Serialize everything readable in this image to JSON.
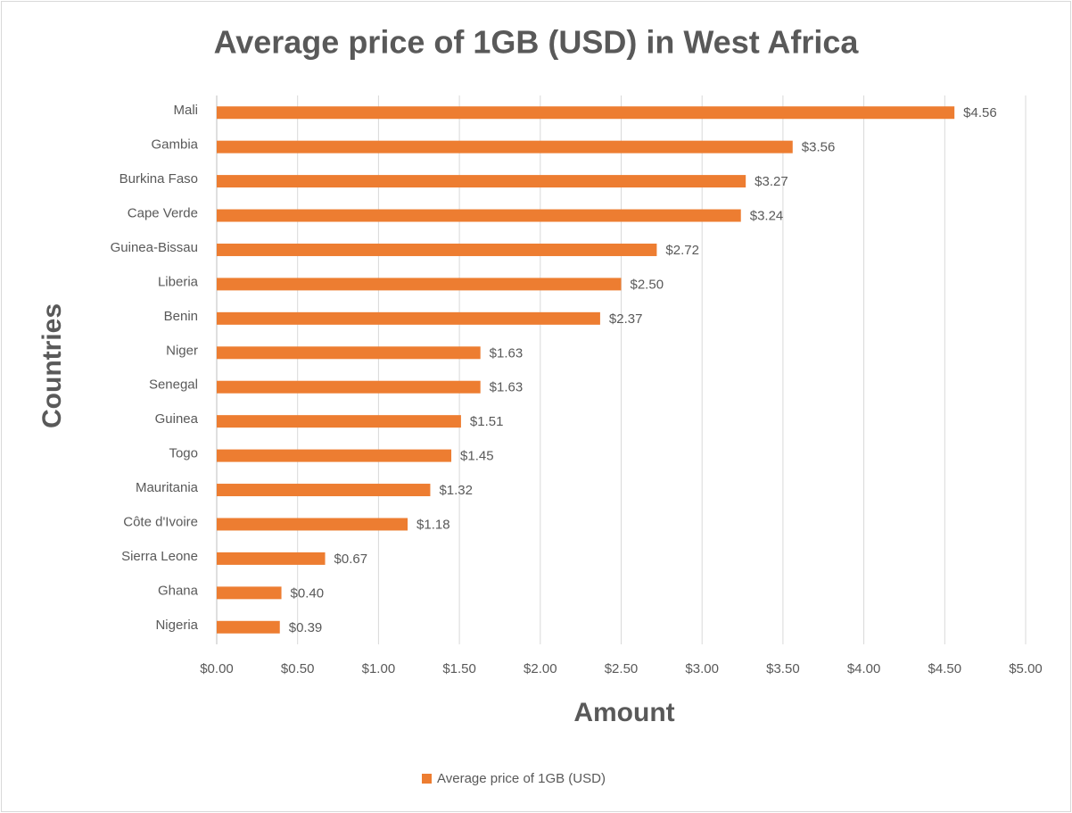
{
  "chart_data": {
    "type": "bar",
    "orientation": "horizontal",
    "title": "Average price of 1GB (USD) in West Africa",
    "x_label": "Amount",
    "y_label": "Countries",
    "categories": [
      "Mali",
      "Gambia",
      "Burkina Faso",
      "Cape Verde",
      "Guinea-Bissau",
      "Liberia",
      "Benin",
      "Niger",
      "Senegal",
      "Guinea",
      "Togo",
      "Mauritania",
      "Côte d'Ivoire",
      "Sierra Leone",
      "Ghana",
      "Nigeria"
    ],
    "series": [
      {
        "name": "Average price of 1GB (USD)",
        "color": "#ed7d31",
        "values": [
          4.56,
          3.56,
          3.27,
          3.24,
          2.72,
          2.5,
          2.37,
          1.63,
          1.63,
          1.51,
          1.45,
          1.32,
          1.18,
          0.67,
          0.4,
          0.39
        ],
        "value_labels": [
          "$4.56",
          "$3.56",
          "$3.27",
          "$3.24",
          "$2.72",
          "$2.50",
          "$2.37",
          "$1.63",
          "$1.63",
          "$1.51",
          "$1.45",
          "$1.32",
          "$1.18",
          "$0.67",
          "$0.40",
          "$0.39"
        ]
      }
    ],
    "xlim": [
      0,
      5
    ],
    "xticks": [
      {
        "value": 0,
        "label": "$0.00"
      },
      {
        "value": 0.5,
        "label": "$0.50"
      },
      {
        "value": 1,
        "label": "$1.00"
      },
      {
        "value": 1.5,
        "label": "$1.50"
      },
      {
        "value": 2,
        "label": "$2.00"
      },
      {
        "value": 2.5,
        "label": "$2.50"
      },
      {
        "value": 3,
        "label": "$3.00"
      },
      {
        "value": 3.5,
        "label": "$3.50"
      },
      {
        "value": 4,
        "label": "$4.00"
      },
      {
        "value": 4.5,
        "label": "$4.50"
      },
      {
        "value": 5,
        "label": "$5.00"
      }
    ],
    "grid": true,
    "legend": "bottom"
  }
}
